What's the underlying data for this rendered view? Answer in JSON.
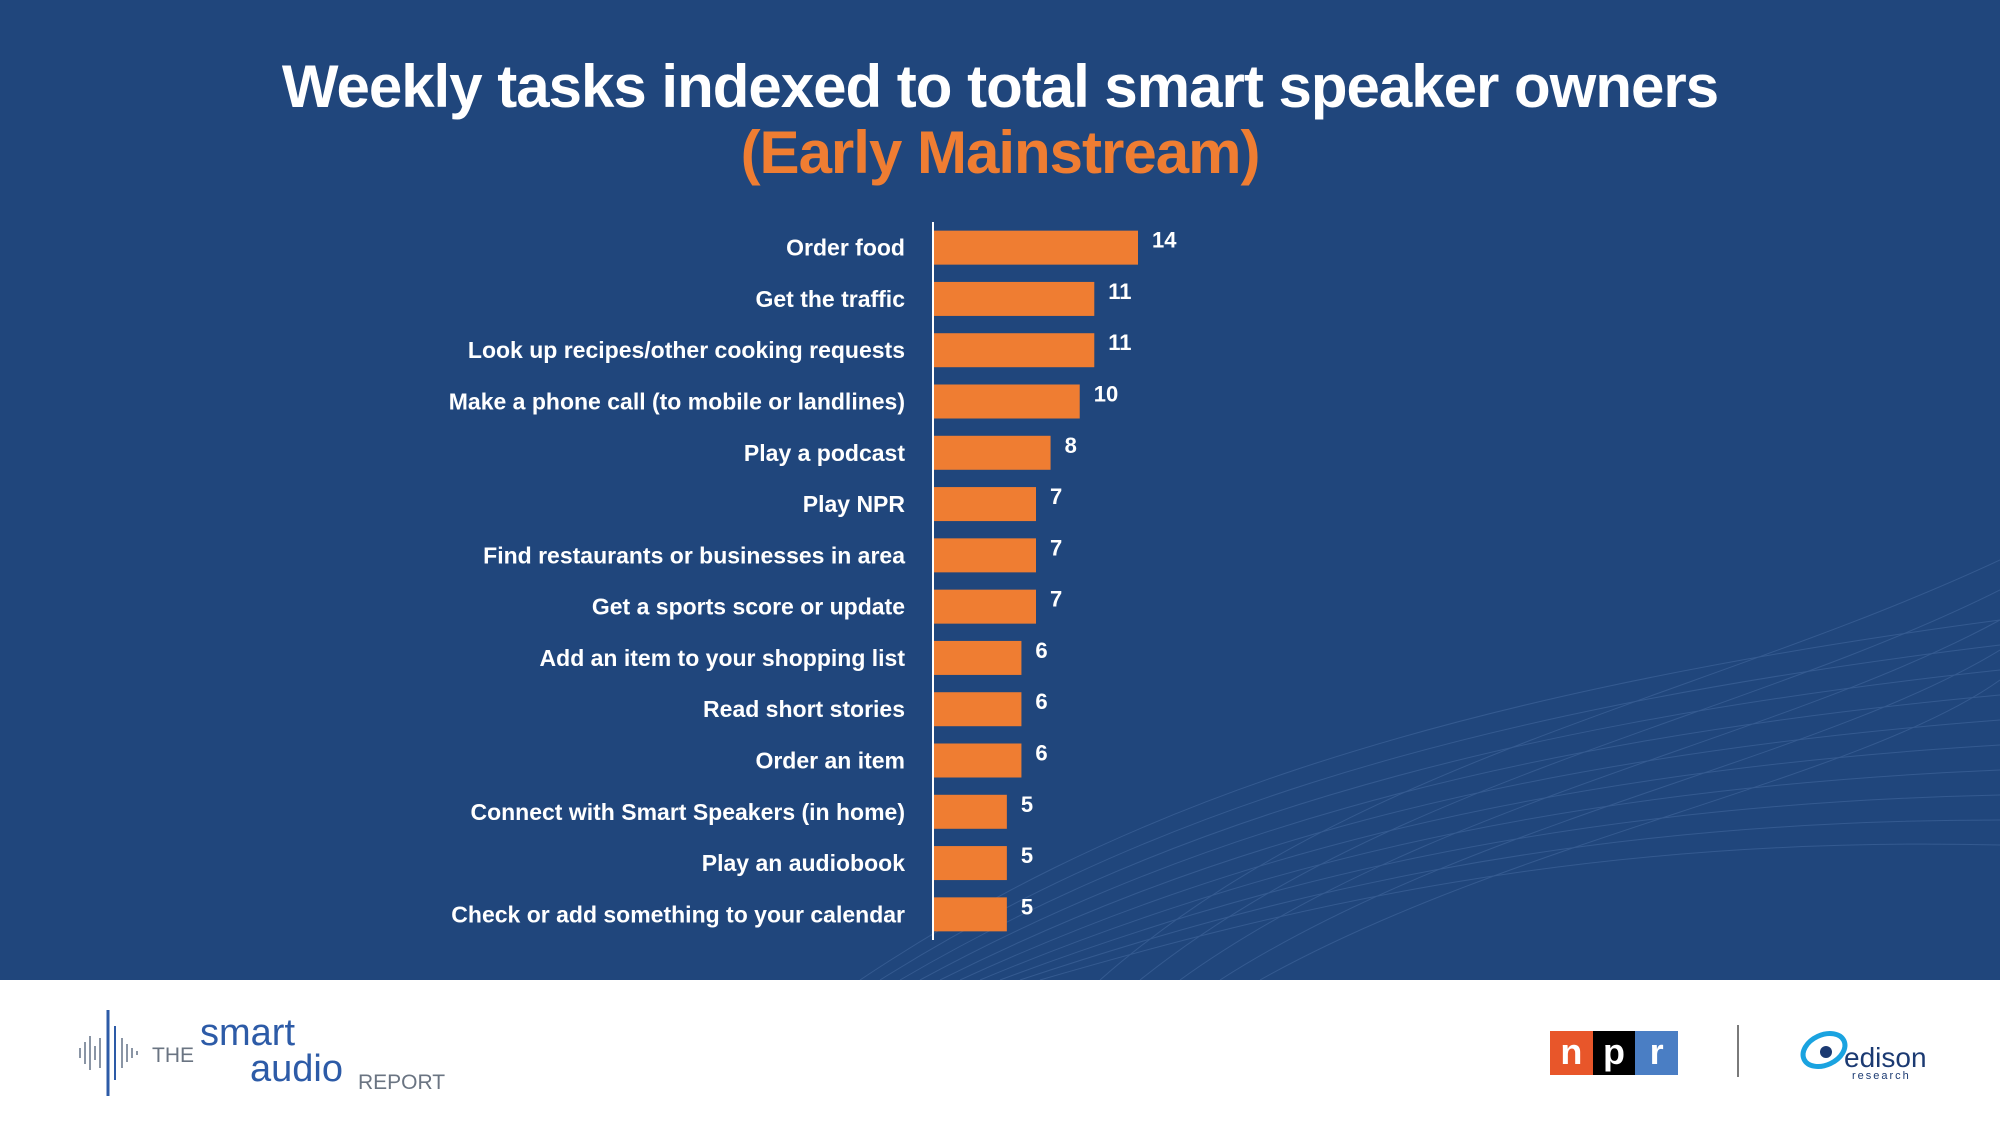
{
  "header": {
    "title": "Weekly tasks indexed to total smart speaker owners",
    "subtitle": "(Early Mainstream)"
  },
  "colors": {
    "background": "#20467c",
    "bar": "#ef7d32",
    "text": "#ffffff",
    "subtitle": "#ef7d32"
  },
  "chart_data": {
    "type": "bar",
    "orientation": "horizontal",
    "title": "Weekly tasks indexed to total smart speaker owners",
    "subtitle": "(Early Mainstream)",
    "xlabel": "",
    "ylabel": "",
    "xlim": [
      0,
      14
    ],
    "grid": false,
    "categories": [
      "Order food",
      "Get the traffic",
      "Look up recipes/other cooking requests",
      "Make a phone call (to mobile or landlines)",
      "Play a podcast",
      "Play NPR",
      "Find restaurants or businesses in area",
      "Get a sports score or update",
      "Add an item to your shopping list",
      "Read short stories",
      "Order an item",
      "Connect with Smart Speakers (in home)",
      "Play an audiobook",
      "Check or add something to your calendar"
    ],
    "values": [
      14,
      11,
      11,
      10,
      8,
      7,
      7,
      7,
      6,
      6,
      6,
      5,
      5,
      5
    ]
  },
  "footer": {
    "brand": {
      "the": "THE",
      "smart": "smart",
      "audio": "audio",
      "report": "REPORT",
      "icon": "sound-wave-icon"
    },
    "npr": [
      "n",
      "p",
      "r"
    ],
    "edison": {
      "name": "edison",
      "sub": "research",
      "icon": "edison-orbit-icon"
    }
  }
}
